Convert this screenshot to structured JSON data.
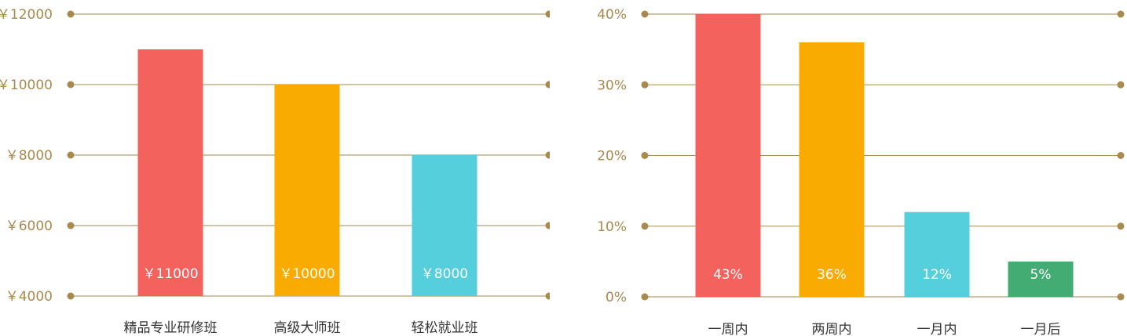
{
  "chart_data": [
    {
      "type": "bar",
      "categories": [
        "精品专业研修班",
        "高级大师班",
        "轻松就业班"
      ],
      "values": [
        11000,
        10000,
        8000
      ],
      "data_labels": [
        "￥11000",
        "￥10000",
        "￥8000"
      ],
      "colors": [
        "#f4625e",
        "#f9ab02",
        "#56cfdc"
      ],
      "ylim": [
        4000,
        12000
      ],
      "yticks": [
        4000,
        6000,
        8000,
        10000,
        12000
      ],
      "ytick_labels": [
        "￥4000",
        "￥6000",
        "￥8000",
        "￥10000",
        "￥12000"
      ],
      "grid": true,
      "grid_color": "#a88a4f"
    },
    {
      "type": "bar",
      "categories": [
        "一周内",
        "两周内",
        "一月内",
        "一月后"
      ],
      "values": [
        43,
        36,
        12,
        5
      ],
      "data_labels": [
        "43%",
        "36%",
        "12%",
        "5%"
      ],
      "colors": [
        "#f4625e",
        "#f9ab02",
        "#56cfdc",
        "#43ac72"
      ],
      "ylim": [
        0,
        40
      ],
      "yticks": [
        0,
        10,
        20,
        30,
        40
      ],
      "ytick_labels": [
        "0%",
        "10%",
        "20%",
        "30%",
        "40%"
      ],
      "grid": true,
      "grid_color": "#a88a4f"
    }
  ]
}
